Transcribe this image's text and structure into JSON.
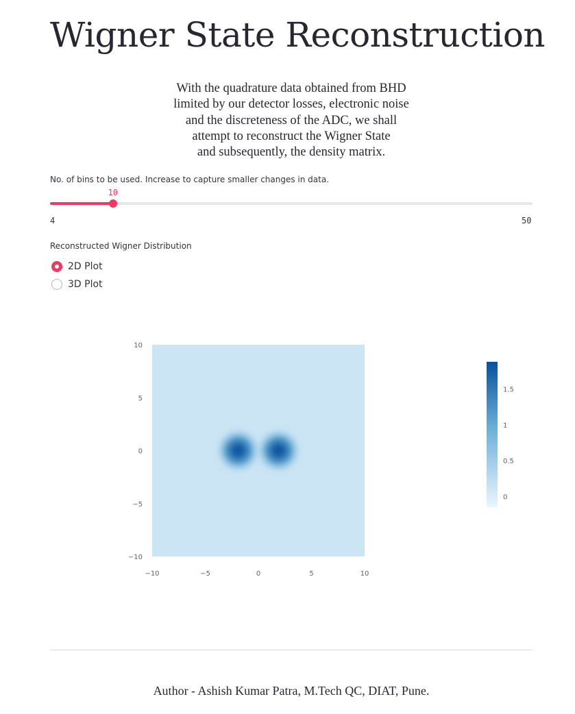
{
  "page": {
    "title": "Wigner State Reconstruction",
    "intro_lines": [
      "With the quadrature data obtained from BHD",
      "limited by our detector losses, electronic noise",
      "and the discreteness of the ADC, we shall",
      "attempt to reconstruct the Wigner State",
      "and subsequently, the density matrix."
    ]
  },
  "slider": {
    "label": "No. of bins to be used. Increase to capture smaller changes in data.",
    "value": 10,
    "value_label": "10",
    "min": 4,
    "max": 50,
    "min_label": "4",
    "max_label": "50",
    "accent": "#ef3963"
  },
  "plot_select": {
    "label": "Reconstructed Wigner Distribution",
    "options": [
      {
        "label": "2D Plot",
        "selected": true
      },
      {
        "label": "3D Plot",
        "selected": false
      }
    ]
  },
  "chart_data": {
    "type": "heatmap",
    "title": "",
    "xlabel": "",
    "ylabel": "",
    "xlim": [
      -10,
      10
    ],
    "ylim": [
      10,
      -10
    ],
    "x_ticks": [
      "−10",
      "−5",
      "0",
      "5",
      "10"
    ],
    "y_ticks": [
      "−10",
      "−5",
      "0",
      "5",
      "10"
    ],
    "x_tick_values": [
      -10,
      -5,
      0,
      5,
      10
    ],
    "y_tick_values": [
      -10,
      -5,
      0,
      5,
      10
    ],
    "colorscale": "Blues",
    "colorbar": {
      "range": [
        -0.15,
        1.88
      ],
      "tick_values": [
        0,
        0.5,
        1,
        1.5
      ],
      "tick_labels": [
        "0",
        "0.5",
        "1",
        "1.5"
      ],
      "color_low": "#eaf6ff",
      "color_high": "#08519c"
    },
    "background_value": 0.12,
    "peaks": [
      {
        "x": -1.9,
        "y": 0,
        "value": 1.85
      },
      {
        "x": 1.9,
        "y": 0,
        "value": 1.85
      }
    ]
  },
  "footer": {
    "text": "Author - Ashish Kumar Patra, M.Tech QC, DIAT, Pune."
  }
}
